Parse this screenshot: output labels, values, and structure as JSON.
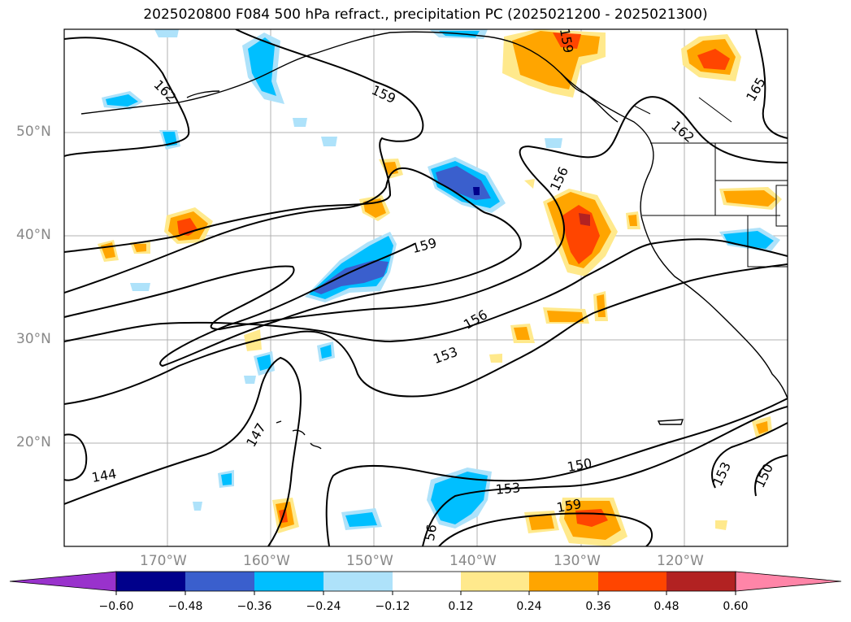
{
  "title": "2025020800 F084 500 hPa refract., precipitation PC (2025021200 - 2025021300)",
  "map": {
    "lat_ticks": [
      "50°N",
      "40°N",
      "30°N",
      "20°N"
    ],
    "lon_ticks": [
      "170°W",
      "160°W",
      "150°W",
      "140°W",
      "130°W",
      "120°W"
    ],
    "contour_labels": [
      "162",
      "159",
      "165",
      "162",
      "159",
      "156",
      "159",
      "156",
      "153",
      "147",
      "144",
      "150",
      "153",
      "159",
      "153",
      "150",
      "56"
    ],
    "colors": {
      "coast": "#000000",
      "grid": "#b0b0b0"
    }
  },
  "colorbar": {
    "tick_labels": [
      "−0.60",
      "−0.48",
      "−0.36",
      "−0.24",
      "−0.12",
      "0.12",
      "0.24",
      "0.36",
      "0.48",
      "0.60"
    ],
    "colors": [
      "#9932cc",
      "#00008b",
      "#3a5fcd",
      "#00bfff",
      "#aee2fa",
      "#ffffff",
      "#ffe98c",
      "#ffa500",
      "#ff4500",
      "#b22222",
      "#ff85a8"
    ]
  }
}
